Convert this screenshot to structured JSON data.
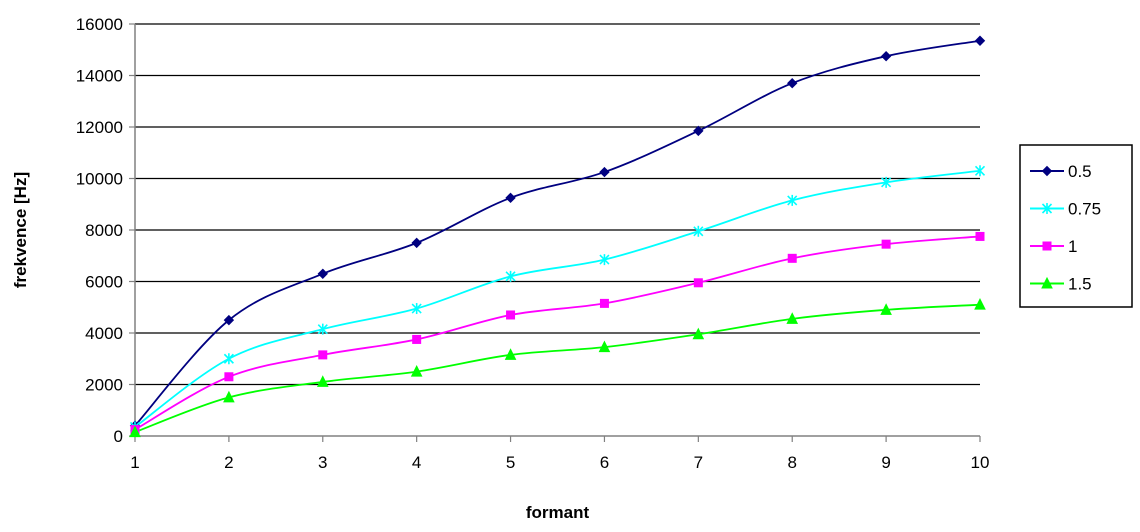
{
  "chart_data": {
    "type": "line",
    "title": "",
    "xlabel": "formant",
    "ylabel": "frekvence [Hz]",
    "x": [
      1,
      2,
      3,
      4,
      5,
      6,
      7,
      8,
      9,
      10
    ],
    "xlim": [
      1,
      10
    ],
    "ylim": [
      0,
      16000
    ],
    "yticks": [
      0,
      2000,
      4000,
      6000,
      8000,
      10000,
      12000,
      14000,
      16000
    ],
    "xticks": [
      1,
      2,
      3,
      4,
      5,
      6,
      7,
      8,
      9,
      10
    ],
    "grid": "horizontal",
    "legend_position": "right",
    "smoothed": true,
    "series": [
      {
        "name": "0.5",
        "color": "#000080",
        "marker": "diamond",
        "values": [
          400,
          4500,
          6300,
          7500,
          9250,
          10250,
          11850,
          13700,
          14750,
          15350
        ]
      },
      {
        "name": "0.75",
        "color": "#00FFFF",
        "marker": "star",
        "values": [
          350,
          3000,
          4150,
          4950,
          6200,
          6850,
          7950,
          9150,
          9850,
          10300
        ]
      },
      {
        "name": "1",
        "color": "#FF00FF",
        "marker": "square",
        "values": [
          250,
          2300,
          3150,
          3750,
          4700,
          5150,
          5950,
          6900,
          7450,
          7750
        ]
      },
      {
        "name": "1.5",
        "color": "#00FF00",
        "marker": "triangle",
        "values": [
          150,
          1500,
          2100,
          2500,
          3150,
          3450,
          3950,
          4550,
          4900,
          5100
        ]
      }
    ]
  }
}
